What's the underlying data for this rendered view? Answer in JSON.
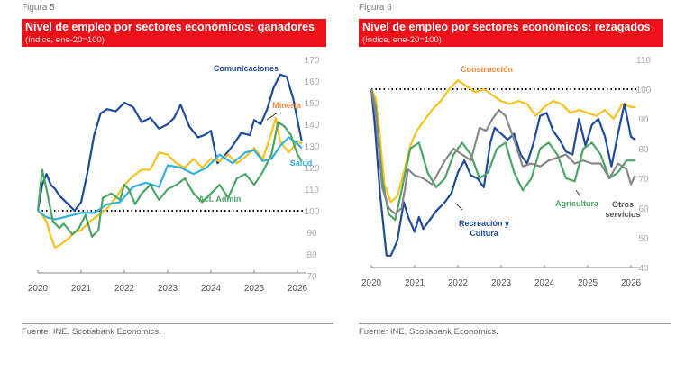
{
  "chart_data": [
    {
      "type": "line",
      "figure_label": "Figura 5",
      "title": "Nivel de empleo por sectores económicos: ganadores",
      "subtitle": "(índice, ene-20=100)",
      "source": "Fuente: INE, Scotiabank Economics.",
      "xlabel": "",
      "ylabel": "",
      "x_ticks": [
        "2020",
        "2021",
        "2022",
        "2023",
        "2024",
        "2025",
        "2026"
      ],
      "xlim": [
        2020,
        2026.2
      ],
      "ylim": [
        70,
        170
      ],
      "y_ticks": [
        70,
        80,
        90,
        100,
        110,
        120,
        130,
        140,
        150,
        160,
        170
      ],
      "y_axis_side": "right",
      "reference_line": {
        "value": 100,
        "style": "dotted",
        "color": "#000000"
      },
      "grid": false,
      "series": [
        {
          "name": "Comunicaciones",
          "color": "#1e4a9c",
          "x": [
            2020,
            2020.1,
            2020.2,
            2020.3,
            2020.4,
            2020.5,
            2020.7,
            2020.85,
            2021,
            2021.15,
            2021.3,
            2021.45,
            2021.6,
            2021.8,
            2022,
            2022.2,
            2022.4,
            2022.6,
            2022.8,
            2023,
            2023.15,
            2023.3,
            2023.5,
            2023.7,
            2023.85,
            2024,
            2024.15,
            2024.3,
            2024.5,
            2024.7,
            2024.9,
            2025,
            2025.15,
            2025.3,
            2025.45,
            2025.6,
            2025.75,
            2025.9,
            2026,
            2026.1
          ],
          "y": [
            100,
            112,
            117,
            112,
            110,
            107,
            103,
            100,
            104,
            118,
            135,
            145,
            147,
            146,
            150,
            148,
            141,
            143,
            138,
            140,
            143,
            149,
            139,
            134,
            135,
            137,
            122,
            125,
            130,
            136,
            135,
            142,
            140,
            147,
            157,
            163,
            162,
            152,
            142,
            132
          ]
        },
        {
          "name": "Minería",
          "color": "#f7c21d",
          "x": [
            2020,
            2020.1,
            2020.2,
            2020.3,
            2020.4,
            2020.5,
            2020.7,
            2020.85,
            2021,
            2021.2,
            2021.4,
            2021.6,
            2021.8,
            2022,
            2022.2,
            2022.4,
            2022.6,
            2022.8,
            2023,
            2023.2,
            2023.4,
            2023.6,
            2023.8,
            2024,
            2024.2,
            2024.4,
            2024.6,
            2024.8,
            2025,
            2025.2,
            2025.4,
            2025.5,
            2025.6,
            2025.8,
            2026,
            2026.1
          ],
          "y": [
            100,
            98,
            95,
            88,
            83,
            84,
            87,
            90,
            91,
            95,
            98,
            101,
            106,
            112,
            116,
            119,
            119,
            127,
            126,
            122,
            120,
            124,
            120,
            124,
            123,
            126,
            122,
            125,
            129,
            124,
            136,
            143,
            132,
            127,
            132,
            131
          ]
        },
        {
          "name": "Salud",
          "color": "#30b1e0",
          "x": [
            2020,
            2020.2,
            2020.4,
            2020.6,
            2020.8,
            2021,
            2021.3,
            2021.6,
            2021.9,
            2022.2,
            2022.5,
            2022.8,
            2023,
            2023.3,
            2023.6,
            2023.9,
            2024.2,
            2024.5,
            2024.8,
            2025,
            2025.2,
            2025.4,
            2025.6,
            2025.8,
            2026,
            2026.1
          ],
          "y": [
            100,
            97,
            96,
            97,
            98,
            99,
            99,
            103,
            104,
            111,
            113,
            111,
            121,
            120,
            117,
            120,
            126,
            122,
            127,
            128,
            123,
            124,
            130,
            134,
            131,
            129
          ]
        },
        {
          "name": "Act. Admin.",
          "color": "#4aa664",
          "x": [
            2020,
            2020.1,
            2020.2,
            2020.35,
            2020.5,
            2020.6,
            2020.8,
            2020.95,
            2021.1,
            2021.25,
            2021.4,
            2021.5,
            2021.7,
            2021.9,
            2022,
            2022.1,
            2022.25,
            2022.4,
            2022.6,
            2022.8,
            2023,
            2023.2,
            2023.4,
            2023.6,
            2023.8,
            2024,
            2024.2,
            2024.4,
            2024.6,
            2024.8,
            2025,
            2025.2,
            2025.4,
            2025.55,
            2025.7,
            2025.85,
            2026,
            2026.1
          ],
          "y": [
            100,
            119,
            110,
            95,
            92,
            94,
            89,
            92,
            98,
            88,
            91,
            106,
            108,
            105,
            112,
            110,
            103,
            108,
            112,
            105,
            110,
            112,
            115,
            108,
            104,
            108,
            112,
            106,
            115,
            117,
            112,
            118,
            126,
            141,
            139,
            135,
            126,
            123
          ]
        }
      ]
    },
    {
      "type": "line",
      "figure_label": "Figura 6",
      "title": "Nivel de empleo por sectores económicos: rezagados",
      "subtitle": "(índice, ene-20=100)",
      "source": "Fuente: INE, Scotiabank Economics.",
      "xlabel": "",
      "ylabel": "",
      "x_ticks": [
        "2020",
        "2021",
        "2022",
        "2023",
        "2024",
        "2025",
        "2026"
      ],
      "xlim": [
        2020,
        2026.2
      ],
      "ylim": [
        40,
        110
      ],
      "y_ticks": [
        40,
        50,
        60,
        70,
        80,
        90,
        100,
        110
      ],
      "y_axis_side": "right",
      "reference_line": {
        "value": 100,
        "style": "dotted",
        "color": "#000000"
      },
      "grid": false,
      "series": [
        {
          "name": "Construcción",
          "color": "#f7c21d",
          "x": [
            2020,
            2020.1,
            2020.2,
            2020.3,
            2020.45,
            2020.6,
            2020.75,
            2020.9,
            2021.05,
            2021.2,
            2021.4,
            2021.6,
            2021.8,
            2022,
            2022.2,
            2022.4,
            2022.6,
            2022.8,
            2023,
            2023.2,
            2023.4,
            2023.6,
            2023.8,
            2024,
            2024.2,
            2024.4,
            2024.6,
            2024.8,
            2025,
            2025.2,
            2025.4,
            2025.6,
            2025.8,
            2026,
            2026.1
          ],
          "y": [
            100,
            97,
            84,
            68,
            62,
            64,
            72,
            81,
            86,
            89,
            93,
            96,
            100,
            103,
            101,
            99,
            100,
            98,
            96,
            95,
            96,
            95,
            91,
            94,
            96,
            95,
            92,
            93,
            92,
            91,
            93,
            90,
            95,
            94,
            94
          ]
        },
        {
          "name": "Recreación y Cultura",
          "color": "#1e4a9c",
          "x": [
            2020,
            2020.08,
            2020.2,
            2020.35,
            2020.45,
            2020.6,
            2020.75,
            2020.85,
            2021,
            2021.1,
            2021.2,
            2021.35,
            2021.5,
            2021.7,
            2021.85,
            2022,
            2022.15,
            2022.3,
            2022.45,
            2022.6,
            2022.75,
            2022.85,
            2023,
            2023.15,
            2023.3,
            2023.45,
            2023.6,
            2023.75,
            2023.9,
            2024.05,
            2024.2,
            2024.35,
            2024.5,
            2024.65,
            2024.8,
            2024.95,
            2025.1,
            2025.25,
            2025.4,
            2025.55,
            2025.7,
            2025.85,
            2026,
            2026.1
          ],
          "y": [
            100,
            88,
            65,
            44,
            44,
            49,
            62,
            57,
            52,
            57,
            53,
            56,
            59,
            62,
            65,
            72,
            76,
            71,
            70,
            67,
            82,
            87,
            85,
            83,
            85,
            78,
            75,
            82,
            91,
            92,
            86,
            83,
            79,
            78,
            90,
            81,
            88,
            90,
            84,
            74,
            85,
            95,
            84,
            83
          ]
        },
        {
          "name": "Agricultura",
          "color": "#4aa664",
          "x": [
            2020,
            2020.1,
            2020.25,
            2020.4,
            2020.55,
            2020.7,
            2020.9,
            2021.1,
            2021.3,
            2021.5,
            2021.7,
            2021.9,
            2022.1,
            2022.3,
            2022.5,
            2022.7,
            2022.9,
            2023.1,
            2023.3,
            2023.5,
            2023.7,
            2023.9,
            2024.1,
            2024.3,
            2024.5,
            2024.7,
            2024.9,
            2025.1,
            2025.3,
            2025.5,
            2025.7,
            2025.9,
            2026.1
          ],
          "y": [
            100,
            94,
            70,
            58,
            56,
            66,
            80,
            82,
            72,
            67,
            70,
            78,
            82,
            78,
            70,
            72,
            80,
            82,
            72,
            66,
            70,
            80,
            82,
            78,
            70,
            69,
            80,
            82,
            78,
            70,
            72,
            76,
            76
          ]
        },
        {
          "name": "Otros servicios",
          "color": "#888888",
          "x": [
            2020,
            2020.1,
            2020.25,
            2020.4,
            2020.55,
            2020.7,
            2020.85,
            2021,
            2021.2,
            2021.4,
            2021.55,
            2021.7,
            2021.9,
            2022.1,
            2022.3,
            2022.5,
            2022.65,
            2022.8,
            2022.95,
            2023.1,
            2023.3,
            2023.5,
            2023.7,
            2023.9,
            2024.1,
            2024.3,
            2024.5,
            2024.7,
            2024.9,
            2025.1,
            2025.3,
            2025.5,
            2025.7,
            2025.9,
            2026,
            2026.1
          ],
          "y": [
            100,
            92,
            67,
            60,
            58,
            60,
            73,
            71,
            70,
            68,
            72,
            76,
            80,
            78,
            76,
            87,
            86,
            90,
            93,
            91,
            83,
            74,
            75,
            74,
            76,
            77,
            78,
            75,
            76,
            75,
            75,
            70,
            75,
            73,
            68,
            71
          ]
        }
      ]
    }
  ]
}
